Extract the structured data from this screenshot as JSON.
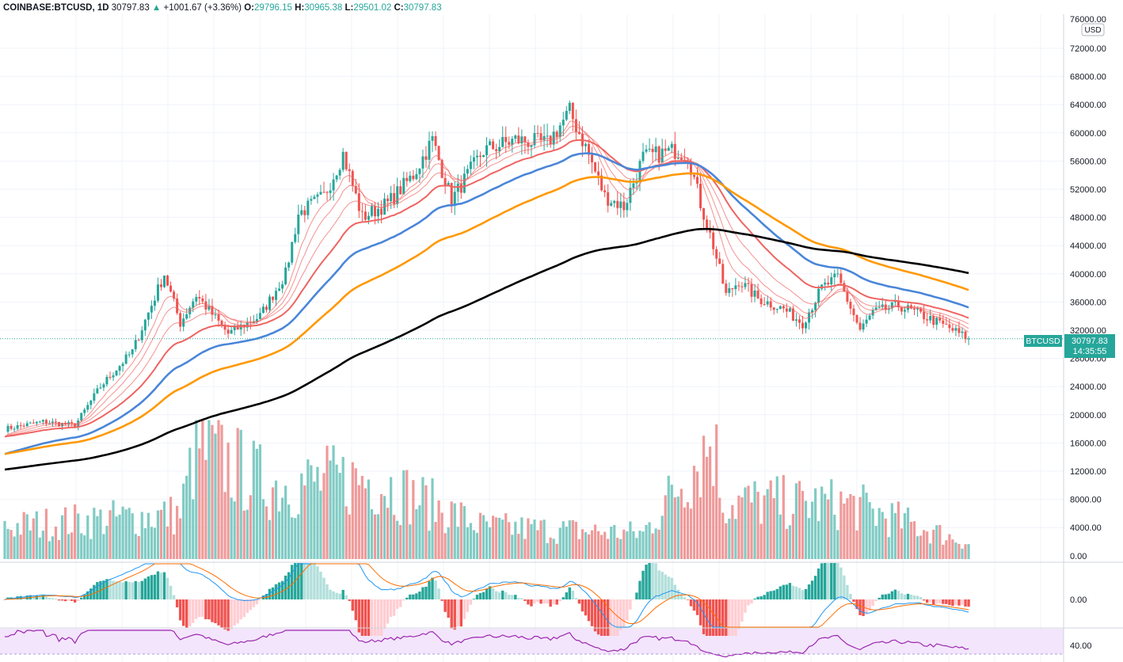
{
  "header": {
    "symbol": "COINBASE:BTCUSD, 1D",
    "last": "30797.83",
    "arrow": "▲",
    "change": "+1001.67 (+3.36%)",
    "o_label": "O:",
    "o": "29796.15",
    "h_label": "H:",
    "h": "30965.38",
    "l_label": "L:",
    "l": "29501.02",
    "c_label": "C:",
    "c": "30797.83"
  },
  "price_axis": {
    "currency": "USD",
    "top_tick": "76000.00",
    "ticks": [
      "72000.00",
      "68000.00",
      "64000.00",
      "60000.00",
      "56000.00",
      "52000.00",
      "48000.00",
      "44000.00",
      "40000.00",
      "36000.00",
      "32000.00",
      "28000.00",
      "24000.00",
      "20000.00",
      "16000.00",
      "12000.00",
      "8000.00",
      "4000.00",
      "0.00"
    ],
    "last_label": "BTCUSD",
    "last_value": "30797.83",
    "countdown": "14:35:55"
  },
  "macd_axis": {
    "tick": "0.00"
  },
  "rsi_axis": {
    "tick": "40.00"
  },
  "colors": {
    "up": "#26a69a",
    "down": "#ef5350",
    "vol_up": "#80cbc4",
    "vol_down": "#ef9a9a",
    "ma_short": "#ef6461",
    "ma_blue": "#4a86d8",
    "ma_orange": "#ff9800",
    "ma_black": "#000000",
    "rsi": "#9c27b0",
    "rsi_bg": "#f3e5fc"
  },
  "chart_data": {
    "type": "candlestick",
    "symbol": "BTCUSD",
    "interval": "1D",
    "price_ylim": [
      0,
      76000
    ],
    "last_price": 30797.83,
    "price_anchors": [
      {
        "bar": 0,
        "close": 18000
      },
      {
        "bar": 12,
        "close": 19000
      },
      {
        "bar": 22,
        "close": 18500
      },
      {
        "bar": 30,
        "close": 24000
      },
      {
        "bar": 40,
        "close": 29000
      },
      {
        "bar": 50,
        "close": 40000
      },
      {
        "bar": 55,
        "close": 33000
      },
      {
        "bar": 60,
        "close": 37000
      },
      {
        "bar": 70,
        "close": 31500
      },
      {
        "bar": 80,
        "close": 34000
      },
      {
        "bar": 88,
        "close": 40000
      },
      {
        "bar": 92,
        "close": 48500
      },
      {
        "bar": 100,
        "close": 51000
      },
      {
        "bar": 106,
        "close": 57000
      },
      {
        "bar": 112,
        "close": 48000
      },
      {
        "bar": 120,
        "close": 50000
      },
      {
        "bar": 128,
        "close": 54000
      },
      {
        "bar": 134,
        "close": 59000
      },
      {
        "bar": 140,
        "close": 50500
      },
      {
        "bar": 150,
        "close": 57500
      },
      {
        "bar": 160,
        "close": 59000
      },
      {
        "bar": 170,
        "close": 58500
      },
      {
        "bar": 177,
        "close": 63000
      },
      {
        "bar": 182,
        "close": 58000
      },
      {
        "bar": 188,
        "close": 51000
      },
      {
        "bar": 194,
        "close": 49500
      },
      {
        "bar": 200,
        "close": 56500
      },
      {
        "bar": 210,
        "close": 57500
      },
      {
        "bar": 214,
        "close": 57000
      },
      {
        "bar": 218,
        "close": 50000
      },
      {
        "bar": 222,
        "close": 44000
      },
      {
        "bar": 226,
        "close": 37000
      },
      {
        "bar": 230,
        "close": 39000
      },
      {
        "bar": 236,
        "close": 36500
      },
      {
        "bar": 244,
        "close": 35000
      },
      {
        "bar": 250,
        "close": 33000
      },
      {
        "bar": 256,
        "close": 38000
      },
      {
        "bar": 261,
        "close": 39500
      },
      {
        "bar": 268,
        "close": 32000
      },
      {
        "bar": 272,
        "close": 34500
      },
      {
        "bar": 280,
        "close": 35500
      },
      {
        "bar": 288,
        "close": 34000
      },
      {
        "bar": 295,
        "close": 32500
      },
      {
        "bar": 302,
        "close": 30797
      }
    ],
    "volume_ylim": [
      0,
      20000
    ],
    "volume_anchors": [
      {
        "bar": 0,
        "value": 5000
      },
      {
        "bar": 25,
        "value": 6000
      },
      {
        "bar": 55,
        "value": 7000
      },
      {
        "bar": 60,
        "value": 17500
      },
      {
        "bar": 83,
        "value": 11500
      },
      {
        "bar": 115,
        "value": 12500
      },
      {
        "bar": 150,
        "value": 5000
      },
      {
        "bar": 200,
        "value": 4000
      },
      {
        "bar": 222,
        "value": 19000
      },
      {
        "bar": 225,
        "value": 9000
      },
      {
        "bar": 265,
        "value": 8500
      },
      {
        "bar": 302,
        "value": 2500
      }
    ],
    "moving_averages": [
      {
        "period": 8,
        "color": "#ef6461"
      },
      {
        "period": 13,
        "color": "#ef6461"
      },
      {
        "period": 21,
        "color": "#ef6461"
      },
      {
        "period": 34,
        "color": "#ef6461"
      },
      {
        "period": 55,
        "color": "#4a86d8"
      },
      {
        "period": 89,
        "color": "#ff9800"
      },
      {
        "period": 200,
        "color": "#000000"
      }
    ],
    "macd": {
      "zero": 0
    },
    "rsi": {
      "tick": 40
    }
  }
}
